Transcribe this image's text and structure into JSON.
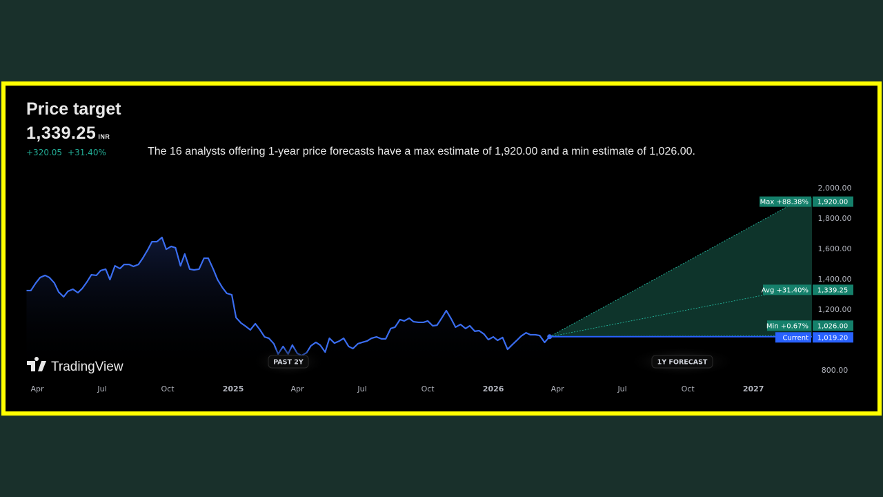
{
  "header": {
    "title": "Price target",
    "price": "1,339.25",
    "currency": "INR",
    "change_abs": "+320.05",
    "change_pct": "+31.40%",
    "description": "The 16 analysts offering 1-year price forecasts have a max estimate of 1,920.00 and a min estimate of 1,026.00."
  },
  "logo": "TradingView",
  "colors": {
    "line": "#3a6df0",
    "positive": "#22ab94",
    "label_bg": "#15806b",
    "current_bg": "#2962ff",
    "frame": "#ffff00",
    "page_bg": "#19302b"
  },
  "chart_data": {
    "type": "line",
    "x_ticks": [
      "Apr",
      "Jul",
      "Oct",
      "2025",
      "Apr",
      "Jul",
      "Oct",
      "2026",
      "Apr",
      "Jul",
      "Oct",
      "2027"
    ],
    "x_tick_dates": [
      "2024-04-01",
      "2024-07-01",
      "2024-10-01",
      "2025-01-01",
      "2025-04-01",
      "2025-07-01",
      "2025-10-01",
      "2026-01-01",
      "2026-04-01",
      "2026-07-01",
      "2026-10-01",
      "2027-01-01"
    ],
    "y_ticks": [
      2000,
      1800,
      1600,
      1400,
      1200,
      800
    ],
    "y_tick_labels": [
      "2,000.00",
      "1,800.00",
      "1,600.00",
      "1,400.00",
      "1,200.00",
      "800.00"
    ],
    "ylim": [
      800,
      2000
    ],
    "history": {
      "date_range": [
        "2024-03-17",
        "2026-03-21"
      ],
      "values": [
        1323,
        1323,
        1373,
        1409,
        1423,
        1409,
        1373,
        1314,
        1282,
        1318,
        1332,
        1309,
        1336,
        1382,
        1427,
        1423,
        1455,
        1464,
        1395,
        1486,
        1468,
        1495,
        1495,
        1482,
        1495,
        1536,
        1591,
        1645,
        1645,
        1673,
        1595,
        1614,
        1605,
        1486,
        1564,
        1464,
        1459,
        1464,
        1536,
        1536,
        1464,
        1395,
        1341,
        1305,
        1295,
        1145,
        1109,
        1086,
        1064,
        1105,
        1068,
        1018,
        1009,
        973,
        905,
        955,
        905,
        964,
        909,
        895,
        914,
        959,
        982,
        964,
        918,
        1009,
        977,
        991,
        1009,
        955,
        941,
        973,
        982,
        991,
        1009,
        1018,
        1005,
        1005,
        1073,
        1082,
        1132,
        1123,
        1141,
        1118,
        1114,
        1114,
        1123,
        1091,
        1095,
        1145,
        1191,
        1136,
        1082,
        1100,
        1073,
        1091,
        1055,
        1059,
        1036,
        1000,
        1018,
        995,
        1014,
        936,
        964,
        995,
        1023,
        1045,
        1032,
        1032,
        1027,
        982,
        1019.2
      ]
    },
    "forecast": {
      "end_date": "2027-03-07",
      "max": {
        "label": "Max +88.38%",
        "value": 1920,
        "value_label": "1,920.00"
      },
      "avg": {
        "label": "Avg +31.40%",
        "value": 1339.25,
        "value_label": "1,339.25"
      },
      "min": {
        "label": "Min +0.67%",
        "value": 1026,
        "value_label": "1,026.00"
      },
      "current": {
        "label": "Current",
        "value": 1019.2,
        "value_label": "1,019.20"
      }
    },
    "period_labels": {
      "past": "PAST 2Y",
      "forecast": "1Y FORECAST"
    }
  }
}
